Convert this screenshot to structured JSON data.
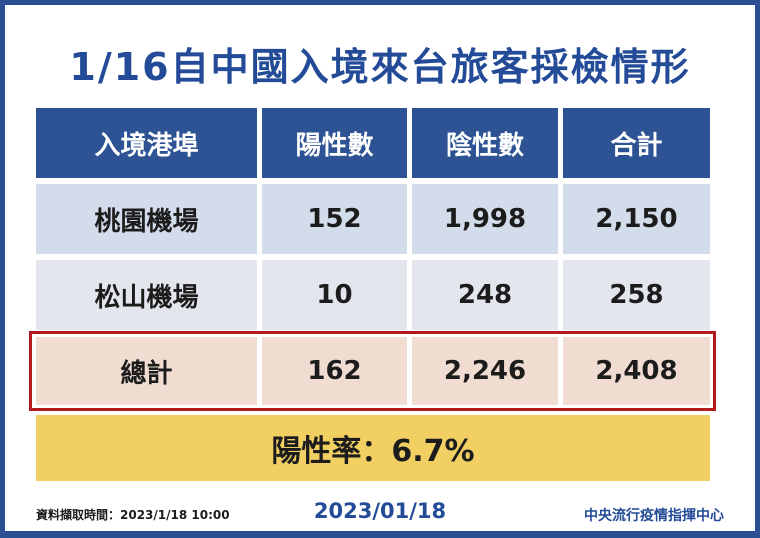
{
  "title": "1/16自中國入境來台旅客採檢情形",
  "table": {
    "headers": [
      "入境港埠",
      "陽性數",
      "陰性數",
      "合計"
    ],
    "rows": [
      {
        "port": "桃園機場",
        "positive": "152",
        "negative": "1,998",
        "total": "2,150"
      },
      {
        "port": "松山機場",
        "positive": "10",
        "negative": "248",
        "total": "258"
      },
      {
        "port": "總計",
        "positive": "162",
        "negative": "2,246",
        "total": "2,408"
      }
    ]
  },
  "positive_rate": "陽性率：6.7%",
  "footer": {
    "data_time": "資料擷取時間：2023/1/18 10:00",
    "date": "2023/01/18",
    "source": "中央流行疫情指揮中心"
  },
  "colors": {
    "brand_blue": "#2d5394",
    "highlight_red": "#b21a1e",
    "rate_yellow": "#f1cf62"
  }
}
